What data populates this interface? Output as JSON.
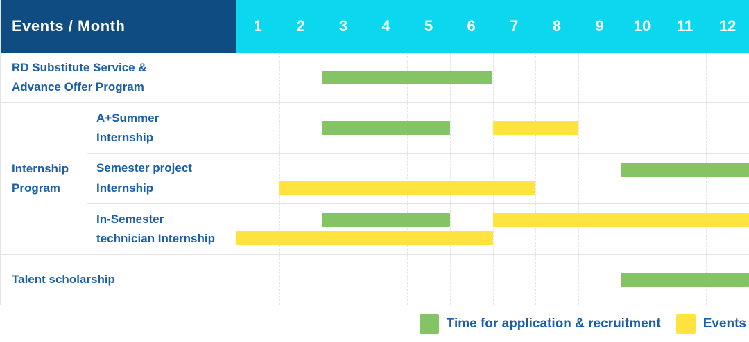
{
  "header": {
    "title_cell": "Events / Month",
    "months": [
      "1",
      "2",
      "3",
      "4",
      "5",
      "6",
      "7",
      "8",
      "9",
      "10",
      "11",
      "12"
    ]
  },
  "colors": {
    "header_bg": "#0F4C81",
    "months_bg": "#0BD8EF",
    "green": "#85C464",
    "yellow": "#FFE33F",
    "label_text": "#1B5FA8",
    "grid": "#E3E3E3"
  },
  "sections": [
    {
      "kind": "row",
      "label": "RD Substitute Service &\nAdvance Offer Program",
      "tracks": 1,
      "bars": [
        {
          "color_key": "green",
          "start": 3,
          "end": 6,
          "track": 0
        }
      ]
    },
    {
      "kind": "group",
      "label": "Internship\nProgram",
      "rows": [
        {
          "label": "A+Summer\nInternship",
          "tracks": 1,
          "bars": [
            {
              "color_key": "green",
              "start": 3,
              "end": 5,
              "track": 0
            },
            {
              "color_key": "yellow",
              "start": 7,
              "end": 8,
              "track": 0
            }
          ]
        },
        {
          "label": "Semester project\nInternship",
          "tracks": 2,
          "bars": [
            {
              "color_key": "green",
              "start": 10,
              "end": 12,
              "track": 0
            },
            {
              "color_key": "yellow",
              "start": 2,
              "end": 7,
              "track": 1
            }
          ]
        },
        {
          "label": "In-Semester\ntechnician Internship",
          "tracks": 2,
          "bars": [
            {
              "color_key": "green",
              "start": 3,
              "end": 5,
              "track": 0
            },
            {
              "color_key": "yellow",
              "start": 7,
              "end": 12,
              "track": 0
            },
            {
              "color_key": "yellow",
              "start": 1,
              "end": 6,
              "track": 1
            }
          ]
        }
      ]
    },
    {
      "kind": "row",
      "label": "Talent scholarship",
      "tracks": 1,
      "bars": [
        {
          "color_key": "green",
          "start": 10,
          "end": 12,
          "track": 0
        }
      ]
    }
  ],
  "legend": [
    {
      "color_key": "green",
      "label": "Time for application & recruitment"
    },
    {
      "color_key": "yellow",
      "label": "Events"
    }
  ],
  "chart_data": {
    "type": "bar",
    "subtype": "gantt",
    "title": "Events / Month",
    "xlabel": "Month",
    "x_ticks": [
      1,
      2,
      3,
      4,
      5,
      6,
      7,
      8,
      9,
      10,
      11,
      12
    ],
    "x_range": [
      1,
      12
    ],
    "grid": true,
    "legend_position": "bottom-right",
    "series_colors": {
      "Time for application & recruitment": "#85C464",
      "Events": "#FFE33F"
    },
    "rows": [
      {
        "category": "RD Substitute Service & Advance Offer Program",
        "group": null,
        "bars": [
          {
            "series": "Time for application & recruitment",
            "start_month": 3,
            "end_month": 6
          }
        ]
      },
      {
        "category": "A+Summer Internship",
        "group": "Internship Program",
        "bars": [
          {
            "series": "Time for application & recruitment",
            "start_month": 3,
            "end_month": 5
          },
          {
            "series": "Events",
            "start_month": 7,
            "end_month": 8
          }
        ]
      },
      {
        "category": "Semester project Internship",
        "group": "Internship Program",
        "bars": [
          {
            "series": "Time for application & recruitment",
            "start_month": 10,
            "end_month": 12
          },
          {
            "series": "Events",
            "start_month": 2,
            "end_month": 7
          }
        ]
      },
      {
        "category": "In-Semester technician Internship",
        "group": "Internship Program",
        "bars": [
          {
            "series": "Time for application & recruitment",
            "start_month": 3,
            "end_month": 5
          },
          {
            "series": "Events",
            "start_month": 7,
            "end_month": 12
          },
          {
            "series": "Events",
            "start_month": 1,
            "end_month": 6
          }
        ]
      },
      {
        "category": "Talent scholarship",
        "group": null,
        "bars": [
          {
            "series": "Time for application & recruitment",
            "start_month": 10,
            "end_month": 12
          }
        ]
      }
    ]
  }
}
